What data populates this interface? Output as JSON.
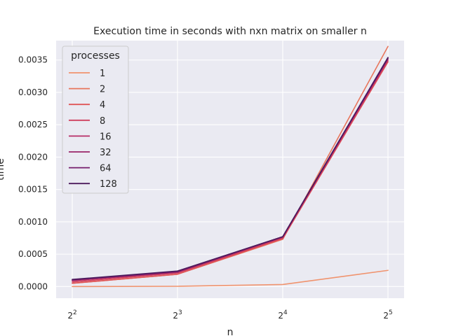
{
  "chart_data": {
    "type": "line",
    "title": "Execution time in seconds with nxn matrix on smaller n",
    "xlabel": "n",
    "ylabel": "time",
    "x": [
      4,
      8,
      16,
      32
    ],
    "x_tick_labels": [
      {
        "base": "2",
        "exp": "2"
      },
      {
        "base": "2",
        "exp": "3"
      },
      {
        "base": "2",
        "exp": "4"
      },
      {
        "base": "2",
        "exp": "5"
      }
    ],
    "x_scale": "log2",
    "ylim": [
      -0.00018,
      0.0038
    ],
    "y_ticks": [
      0.0,
      0.0005,
      0.001,
      0.0015,
      0.002,
      0.0025,
      0.003,
      0.0035
    ],
    "y_tick_labels": [
      "0.0000",
      "0.0005",
      "0.0010",
      "0.0015",
      "0.0020",
      "0.0025",
      "0.0030",
      "0.0035"
    ],
    "grid": true,
    "legend": {
      "title": "processes",
      "placement": "top-left"
    },
    "series": [
      {
        "name": "1",
        "color": "#f0936e",
        "values": [
          2e-07,
          4e-06,
          3.2e-05,
          0.00025
        ]
      },
      {
        "name": "2",
        "color": "#e8765c",
        "values": [
          5e-05,
          0.00019,
          0.00073,
          0.00371
        ]
      },
      {
        "name": "4",
        "color": "#e05556",
        "values": [
          5e-05,
          0.00019,
          0.00074,
          0.00347
        ]
      },
      {
        "name": "8",
        "color": "#d03f5d",
        "values": [
          7e-05,
          0.00021,
          0.00075,
          0.00349
        ]
      },
      {
        "name": "16",
        "color": "#b72d66",
        "values": [
          9e-05,
          0.00022,
          0.00076,
          0.00351
        ]
      },
      {
        "name": "32",
        "color": "#9a2469",
        "values": [
          0.0001,
          0.00023,
          0.00077,
          0.00352
        ]
      },
      {
        "name": "64",
        "color": "#741c6c",
        "values": [
          0.0001,
          0.00023,
          0.00077,
          0.00353
        ]
      },
      {
        "name": "128",
        "color": "#4c1a5c",
        "values": [
          0.00011,
          0.00024,
          0.00077,
          0.00354
        ]
      }
    ]
  }
}
